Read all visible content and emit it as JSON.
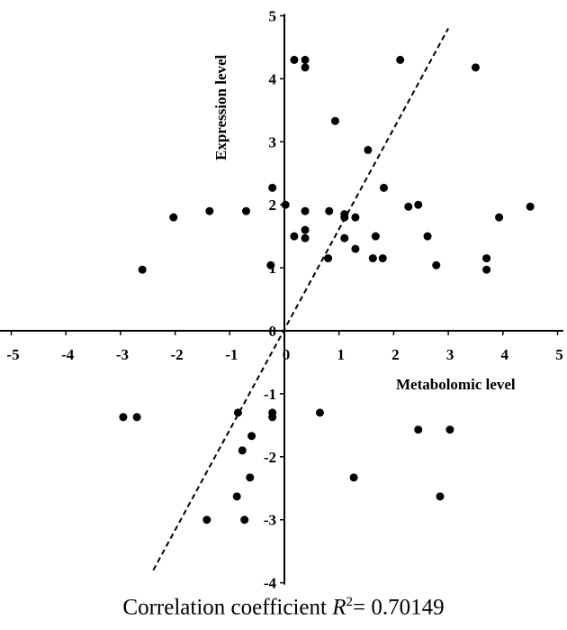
{
  "chart_data": {
    "type": "scatter",
    "xlabel": "Metabolomic level",
    "ylabel": "Expression level",
    "xlim": [
      -5,
      5
    ],
    "ylim": [
      -4,
      5
    ],
    "x_ticks": [
      "-5",
      "-4",
      "-3",
      "-2",
      "-1",
      "0",
      "1",
      "2",
      "3",
      "4",
      "5"
    ],
    "y_ticks": [
      "-4",
      "-3",
      "-2",
      "-1",
      "0",
      "1",
      "2",
      "3",
      "4",
      "5"
    ],
    "marker_color": "#000000",
    "grid": false,
    "trendline": {
      "style": "dashed",
      "from": [
        -2.4,
        -3.8
      ],
      "to": [
        3.0,
        4.8
      ]
    },
    "points": [
      [
        0.18,
        4.3
      ],
      [
        0.38,
        4.3
      ],
      [
        0.38,
        4.18
      ],
      [
        2.12,
        4.3
      ],
      [
        3.5,
        4.18
      ],
      [
        0.93,
        3.33
      ],
      [
        1.53,
        2.87
      ],
      [
        -0.22,
        2.27
      ],
      [
        1.82,
        2.27
      ],
      [
        0.02,
        2.0
      ],
      [
        2.27,
        1.97
      ],
      [
        2.45,
        2.0
      ],
      [
        4.5,
        1.97
      ],
      [
        -2.03,
        1.8
      ],
      [
        -1.37,
        1.9
      ],
      [
        -0.7,
        1.9
      ],
      [
        0.38,
        1.9
      ],
      [
        0.82,
        1.9
      ],
      [
        1.1,
        1.85
      ],
      [
        1.1,
        1.8
      ],
      [
        1.3,
        1.8
      ],
      [
        3.93,
        1.8
      ],
      [
        0.38,
        1.6
      ],
      [
        0.18,
        1.5
      ],
      [
        0.38,
        1.47
      ],
      [
        1.1,
        1.47
      ],
      [
        1.67,
        1.5
      ],
      [
        2.62,
        1.5
      ],
      [
        1.3,
        1.3
      ],
      [
        0.8,
        1.15
      ],
      [
        1.62,
        1.15
      ],
      [
        1.8,
        1.15
      ],
      [
        3.7,
        1.15
      ],
      [
        -2.6,
        0.97
      ],
      [
        -0.25,
        1.04
      ],
      [
        2.78,
        1.04
      ],
      [
        3.7,
        0.97
      ],
      [
        -2.95,
        -1.37
      ],
      [
        -2.7,
        -1.37
      ],
      [
        -0.85,
        -1.3
      ],
      [
        -0.22,
        -1.3
      ],
      [
        -0.22,
        -1.37
      ],
      [
        0.65,
        -1.3
      ],
      [
        2.45,
        -1.57
      ],
      [
        3.03,
        -1.57
      ],
      [
        -0.6,
        -1.67
      ],
      [
        -0.77,
        -1.9
      ],
      [
        -0.63,
        -2.33
      ],
      [
        1.27,
        -2.33
      ],
      [
        -0.87,
        -2.63
      ],
      [
        2.85,
        -2.63
      ],
      [
        -1.42,
        -3.0
      ],
      [
        -0.73,
        -3.0
      ]
    ]
  },
  "caption": {
    "text": "Correlation coefficient ",
    "symbol": "R",
    "superscript": "2",
    "value": "= 0.70149"
  }
}
